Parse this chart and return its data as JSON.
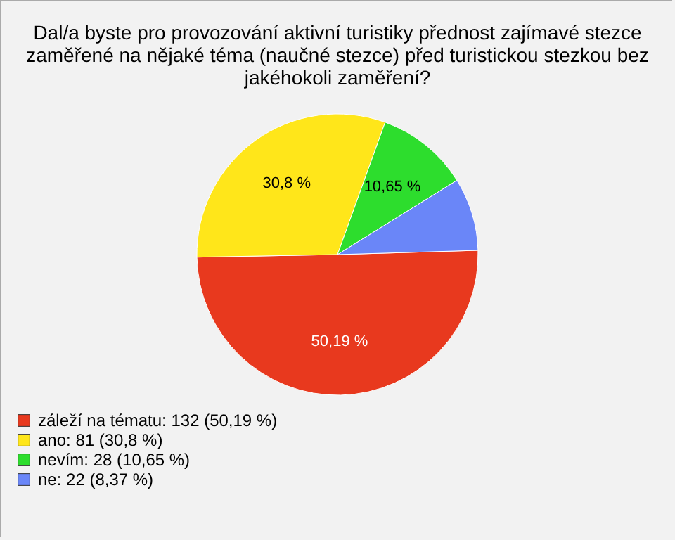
{
  "chart_data": {
    "type": "pie",
    "title": "Dal/a byste pro provozování aktivní turistiky přednost zajímavé stezce zaměřené na nějaké téma (naučné stezce) před turistickou stezkou bez jakéhokoli zaměření?",
    "categories": [
      "záleží na tématu: 132 (50,19 %)",
      "ano: 81 (30,8 %)",
      "nevím: 28 (10,65 %)",
      "ne: 22 (8,37 %)"
    ],
    "values": [
      50.19,
      30.8,
      10.65,
      8.37
    ],
    "colors": [
      "#e8391e",
      "#ffe61a",
      "#2ddd2d",
      "#6a86f8"
    ],
    "value_labels": [
      "50,19 %",
      "30,8 %",
      "10,65 %",
      null
    ],
    "legend": "bottom left"
  }
}
